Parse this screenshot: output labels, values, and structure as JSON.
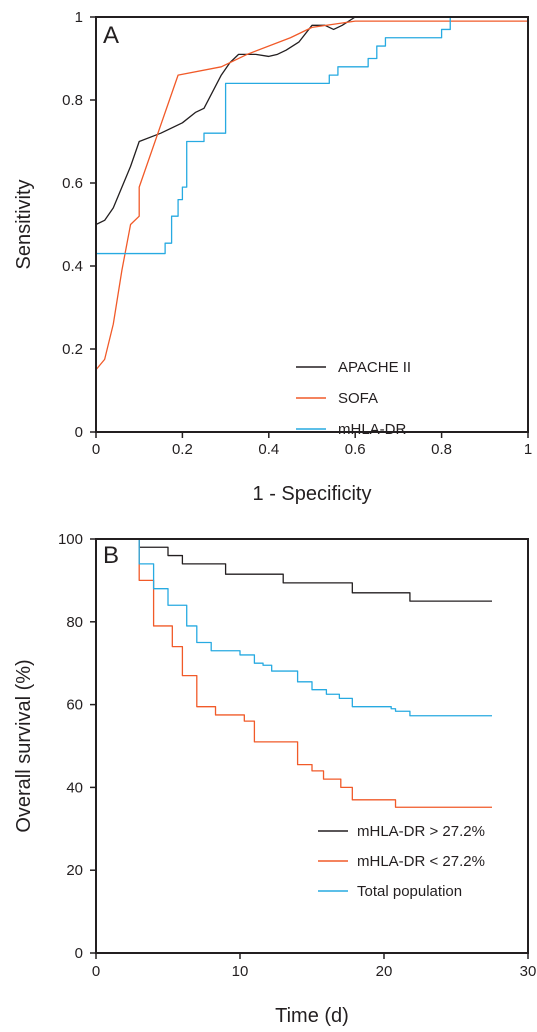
{
  "chart_data": [
    {
      "panel": "A",
      "type": "line",
      "step": false,
      "xlabel": "1 - Specificity",
      "ylabel": "Sensitivity",
      "xlim": [
        0,
        1
      ],
      "ylim": [
        0,
        1
      ],
      "xticks": [
        0,
        0.2,
        0.4,
        0.6,
        0.8,
        1
      ],
      "xtick_labels": [
        "0",
        "0.2",
        "0.4",
        "0.6",
        "0.8",
        "1"
      ],
      "yticks": [
        0,
        0.2,
        0.4,
        0.6,
        0.8,
        1
      ],
      "ytick_labels": [
        "0",
        "0.2",
        "0.4",
        "0.6",
        "0.8",
        "1"
      ],
      "legend_position": "bottom-right",
      "series": [
        {
          "name": "APACHE II",
          "color": "#231f20",
          "points": [
            [
              0,
              0.5
            ],
            [
              0.02,
              0.51
            ],
            [
              0.04,
              0.54
            ],
            [
              0.06,
              0.59
            ],
            [
              0.08,
              0.64
            ],
            [
              0.1,
              0.7
            ],
            [
              0.15,
              0.72
            ],
            [
              0.2,
              0.745
            ],
            [
              0.23,
              0.77
            ],
            [
              0.25,
              0.78
            ],
            [
              0.27,
              0.82
            ],
            [
              0.29,
              0.86
            ],
            [
              0.31,
              0.89
            ],
            [
              0.33,
              0.91
            ],
            [
              0.37,
              0.91
            ],
            [
              0.4,
              0.905
            ],
            [
              0.42,
              0.91
            ],
            [
              0.44,
              0.92
            ],
            [
              0.47,
              0.94
            ],
            [
              0.5,
              0.98
            ],
            [
              0.53,
              0.98
            ],
            [
              0.55,
              0.97
            ],
            [
              0.57,
              0.98
            ],
            [
              0.6,
              1.0
            ],
            [
              1,
              1.0
            ]
          ]
        },
        {
          "name": "SOFA",
          "color": "#f15a29",
          "points": [
            [
              0,
              0.15
            ],
            [
              0.02,
              0.175
            ],
            [
              0.04,
              0.26
            ],
            [
              0.06,
              0.39
            ],
            [
              0.08,
              0.5
            ],
            [
              0.1,
              0.52
            ],
            [
              0.1,
              0.59
            ],
            [
              0.19,
              0.86
            ],
            [
              0.29,
              0.88
            ],
            [
              0.35,
              0.91
            ],
            [
              0.45,
              0.95
            ],
            [
              0.5,
              0.975
            ],
            [
              0.6,
              0.99
            ],
            [
              1,
              0.99
            ]
          ]
        },
        {
          "name": "mHLA-DR",
          "color": "#27aae1",
          "points": [
            [
              0,
              0
            ],
            [
              0,
              0.43
            ],
            [
              0.16,
              0.43
            ],
            [
              0.16,
              0.455
            ],
            [
              0.175,
              0.455
            ],
            [
              0.175,
              0.52
            ],
            [
              0.19,
              0.52
            ],
            [
              0.19,
              0.56
            ],
            [
              0.2,
              0.56
            ],
            [
              0.2,
              0.59
            ],
            [
              0.21,
              0.59
            ],
            [
              0.21,
              0.7
            ],
            [
              0.25,
              0.7
            ],
            [
              0.25,
              0.72
            ],
            [
              0.3,
              0.72
            ],
            [
              0.3,
              0.84
            ],
            [
              0.54,
              0.84
            ],
            [
              0.54,
              0.86
            ],
            [
              0.56,
              0.86
            ],
            [
              0.56,
              0.88
            ],
            [
              0.63,
              0.88
            ],
            [
              0.63,
              0.9
            ],
            [
              0.65,
              0.9
            ],
            [
              0.65,
              0.93
            ],
            [
              0.67,
              0.93
            ],
            [
              0.67,
              0.95
            ],
            [
              0.8,
              0.95
            ],
            [
              0.8,
              0.97
            ],
            [
              0.82,
              0.97
            ],
            [
              0.82,
              1.0
            ],
            [
              1,
              1.0
            ]
          ]
        }
      ]
    },
    {
      "panel": "B",
      "type": "line",
      "step": true,
      "xlabel": "Time (d)",
      "ylabel": "Overall survival (%)",
      "xlim": [
        0,
        30
      ],
      "ylim": [
        0,
        100
      ],
      "xticks": [
        0,
        10,
        20,
        30
      ],
      "xtick_labels": [
        "0",
        "10",
        "20",
        "30"
      ],
      "yticks": [
        0,
        20,
        40,
        60,
        80,
        100
      ],
      "ytick_labels": [
        "0",
        "20",
        "40",
        "60",
        "80",
        "100"
      ],
      "legend_position": "bottom-right",
      "series": [
        {
          "name": "mHLA-DR > 27.2%",
          "color": "#231f20",
          "points": [
            [
              3,
              100
            ],
            [
              3,
              98
            ],
            [
              5,
              98
            ],
            [
              5,
              96
            ],
            [
              6,
              96
            ],
            [
              6,
              94
            ],
            [
              9,
              94
            ],
            [
              9,
              91.5
            ],
            [
              13,
              91.5
            ],
            [
              13,
              89.4
            ],
            [
              17.8,
              89.4
            ],
            [
              17.8,
              87
            ],
            [
              21.8,
              87
            ],
            [
              21.8,
              85
            ],
            [
              27.5,
              85
            ]
          ]
        },
        {
          "name": "mHLA-DR < 27.2%",
          "color": "#f15a29",
          "points": [
            [
              3,
              100
            ],
            [
              3,
              90
            ],
            [
              4,
              90
            ],
            [
              4,
              79
            ],
            [
              5.3,
              79
            ],
            [
              5.3,
              74
            ],
            [
              6,
              74
            ],
            [
              6,
              67
            ],
            [
              7,
              67
            ],
            [
              7,
              59.5
            ],
            [
              8.3,
              59.5
            ],
            [
              8.3,
              57.5
            ],
            [
              10.3,
              57.5
            ],
            [
              10.3,
              56
            ],
            [
              11,
              56
            ],
            [
              11,
              51
            ],
            [
              14,
              51
            ],
            [
              14,
              45.5
            ],
            [
              15,
              45.5
            ],
            [
              15,
              44
            ],
            [
              15.8,
              44
            ],
            [
              15.8,
              42
            ],
            [
              17,
              42
            ],
            [
              17,
              40
            ],
            [
              17.8,
              40
            ],
            [
              17.8,
              37
            ],
            [
              20.8,
              37
            ],
            [
              20.8,
              35.2
            ],
            [
              27.5,
              35.2
            ]
          ]
        },
        {
          "name": "Total population",
          "color": "#27aae1",
          "points": [
            [
              3,
              100
            ],
            [
              3,
              94
            ],
            [
              4,
              94
            ],
            [
              4,
              88
            ],
            [
              5,
              88
            ],
            [
              5,
              84
            ],
            [
              6.3,
              84
            ],
            [
              6.3,
              79
            ],
            [
              7,
              79
            ],
            [
              7,
              75
            ],
            [
              8,
              75
            ],
            [
              8,
              73
            ],
            [
              10,
              73
            ],
            [
              10,
              72
            ],
            [
              11,
              72
            ],
            [
              11,
              70
            ],
            [
              11.6,
              70
            ],
            [
              11.6,
              69.5
            ],
            [
              12.2,
              69.5
            ],
            [
              12.2,
              68.1
            ],
            [
              14,
              68.1
            ],
            [
              14,
              65.5
            ],
            [
              15,
              65.5
            ],
            [
              15,
              63.6
            ],
            [
              16,
              63.6
            ],
            [
              16,
              62.5
            ],
            [
              16.9,
              62.5
            ],
            [
              16.9,
              61.5
            ],
            [
              17.8,
              61.5
            ],
            [
              17.8,
              59.5
            ],
            [
              20.5,
              59.5
            ],
            [
              20.5,
              59
            ],
            [
              20.8,
              59
            ],
            [
              20.8,
              58.4
            ],
            [
              21.8,
              58.4
            ],
            [
              21.8,
              57.3
            ],
            [
              27.5,
              57.3
            ]
          ]
        }
      ]
    }
  ]
}
